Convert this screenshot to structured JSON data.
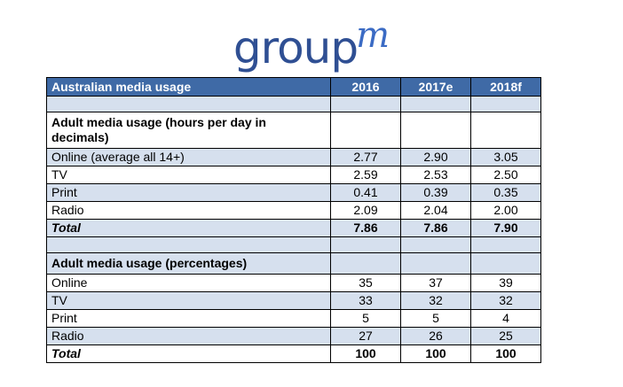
{
  "logo": {
    "main": "group",
    "sup": "m"
  },
  "table": {
    "header": [
      "Australian media usage",
      "2016",
      "2017e",
      "2018f"
    ],
    "section_hours": {
      "title": "Adult media usage (hours per day in decimals)",
      "rows": [
        {
          "label": "Online (average all 14+)",
          "values": [
            "2.77",
            "2.90",
            "3.05"
          ]
        },
        {
          "label": "TV",
          "values": [
            "2.59",
            "2.53",
            "2.50"
          ]
        },
        {
          "label": "Print",
          "values": [
            "0.41",
            "0.39",
            "0.35"
          ]
        },
        {
          "label": "Radio",
          "values": [
            "2.09",
            "2.04",
            "2.00"
          ]
        }
      ],
      "total": {
        "label": "Total",
        "values": [
          "7.86",
          "7.86",
          "7.90"
        ]
      }
    },
    "section_pct": {
      "title": "Adult media usage (percentages)",
      "rows": [
        {
          "label": "Online",
          "values": [
            "35",
            "37",
            "39"
          ]
        },
        {
          "label": "TV",
          "values": [
            "33",
            "32",
            "32"
          ]
        },
        {
          "label": "Print",
          "values": [
            "5",
            "5",
            "4"
          ]
        },
        {
          "label": "Radio",
          "values": [
            "27",
            "26",
            "25"
          ]
        }
      ],
      "total": {
        "label": "Total",
        "values": [
          "100",
          "100",
          "100"
        ]
      }
    }
  }
}
